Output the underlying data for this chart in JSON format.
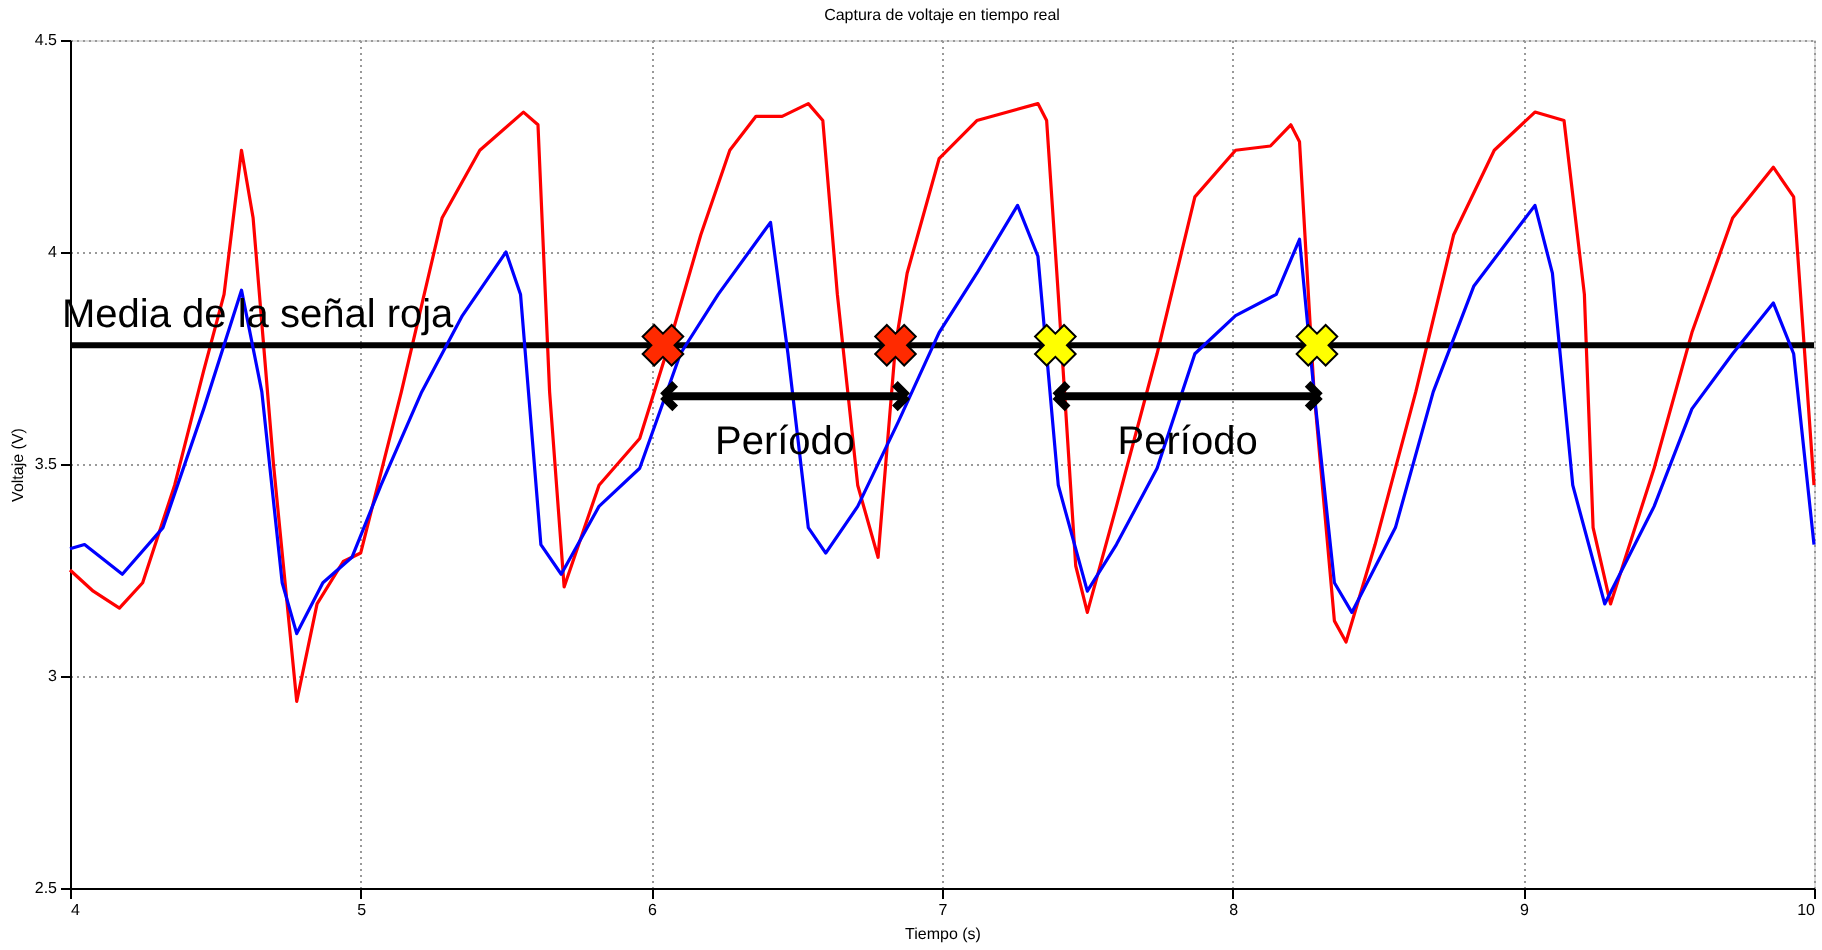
{
  "chart_data": {
    "type": "line",
    "title": "Captura de voltaje en tiempo real",
    "xlabel": "Tiempo (s)",
    "ylabel": "Voltaje (V)",
    "xlim": [
      4,
      10
    ],
    "xticks": [
      4,
      5,
      6,
      7,
      8,
      9,
      10
    ],
    "ylim": [
      2.5,
      4.5
    ],
    "yticks": [
      2.5,
      3,
      3.5,
      4,
      4.5
    ],
    "grid": true,
    "line_style": "solid",
    "marker": "none",
    "series": [
      {
        "color": "#ff0000",
        "x": [
          4.0,
          4.08,
          4.17,
          4.25,
          4.36,
          4.46,
          4.53,
          4.59,
          4.63,
          4.7,
          4.78,
          4.85,
          4.94,
          5.0,
          5.14,
          5.28,
          5.41,
          5.56,
          5.61,
          5.65,
          5.7,
          5.82,
          5.96,
          6.06,
          6.17,
          6.27,
          6.36,
          6.45,
          6.54,
          6.59,
          6.64,
          6.71,
          6.78,
          6.84,
          6.88,
          6.99,
          7.12,
          7.33,
          7.36,
          7.4,
          7.46,
          7.5,
          7.6,
          7.74,
          7.87,
          8.01,
          8.13,
          8.2,
          8.23,
          8.28,
          8.35,
          8.39,
          8.49,
          8.63,
          8.76,
          8.9,
          9.04,
          9.14,
          9.21,
          9.24,
          9.3,
          9.45,
          9.58,
          9.72,
          9.86,
          9.93,
          10.0
        ],
        "values": [
          3.25,
          3.2,
          3.16,
          3.22,
          3.45,
          3.72,
          3.9,
          4.24,
          4.08,
          3.5,
          2.94,
          3.17,
          3.27,
          3.29,
          3.67,
          4.08,
          4.24,
          4.33,
          4.3,
          3.67,
          3.21,
          3.45,
          3.56,
          3.78,
          4.04,
          4.24,
          4.32,
          4.32,
          4.35,
          4.31,
          3.9,
          3.45,
          3.28,
          3.78,
          3.95,
          4.22,
          4.31,
          4.35,
          4.31,
          3.9,
          3.26,
          3.15,
          3.4,
          3.76,
          4.13,
          4.24,
          4.25,
          4.3,
          4.26,
          3.67,
          3.13,
          3.08,
          3.31,
          3.67,
          4.04,
          4.24,
          4.33,
          4.31,
          3.9,
          3.35,
          3.17,
          3.49,
          3.81,
          4.08,
          4.2,
          4.13,
          3.45
        ]
      },
      {
        "color": "#0000ff",
        "x": [
          4.0,
          4.05,
          4.18,
          4.32,
          4.46,
          4.59,
          4.66,
          4.73,
          4.78,
          4.87,
          4.97,
          5.07,
          5.21,
          5.35,
          5.5,
          5.55,
          5.62,
          5.69,
          5.82,
          5.96,
          6.1,
          6.23,
          6.41,
          6.47,
          6.54,
          6.6,
          6.71,
          6.85,
          6.99,
          7.12,
          7.26,
          7.33,
          7.4,
          7.5,
          7.6,
          7.74,
          7.87,
          8.01,
          8.15,
          8.23,
          8.28,
          8.35,
          8.41,
          8.56,
          8.69,
          8.83,
          9.04,
          9.1,
          9.17,
          9.28,
          9.45,
          9.58,
          9.72,
          9.86,
          9.93,
          10.0
        ],
        "values": [
          3.3,
          3.31,
          3.24,
          3.35,
          3.63,
          3.91,
          3.67,
          3.22,
          3.1,
          3.22,
          3.28,
          3.45,
          3.67,
          3.85,
          4.0,
          3.9,
          3.31,
          3.24,
          3.4,
          3.49,
          3.76,
          3.9,
          4.07,
          3.76,
          3.35,
          3.29,
          3.4,
          3.6,
          3.81,
          3.95,
          4.11,
          3.99,
          3.45,
          3.2,
          3.31,
          3.49,
          3.76,
          3.85,
          3.9,
          4.03,
          3.67,
          3.22,
          3.15,
          3.35,
          3.67,
          3.92,
          4.11,
          3.95,
          3.45,
          3.17,
          3.4,
          3.63,
          3.76,
          3.88,
          3.76,
          3.31
        ]
      },
      {
        "type": "scatter",
        "marker": "cross",
        "x": [
          6.04,
          6.84,
          7.39,
          8.29
        ],
        "values": [
          3.78,
          3.78,
          3.78,
          3.78
        ],
        "colors": [
          "#ff2a00",
          "#ff2a00",
          "#ffff00",
          "#ffff00"
        ]
      },
      {
        "type": "line",
        "color": "#000000",
        "x": [
          6.04,
          6.88
        ],
        "values": [
          3.66,
          3.66
        ]
      },
      {
        "type": "line",
        "color": "#000000",
        "x": [
          7.39,
          8.3
        ],
        "values": [
          3.66,
          3.66
        ]
      }
    ],
    "ref_lines": [
      {
        "axis": "y",
        "value": 3.78,
        "label": "Media de la señal roja",
        "color": "#000000",
        "line_style": "solid"
      }
    ],
    "annotations": [
      "Período",
      "Período"
    ]
  }
}
